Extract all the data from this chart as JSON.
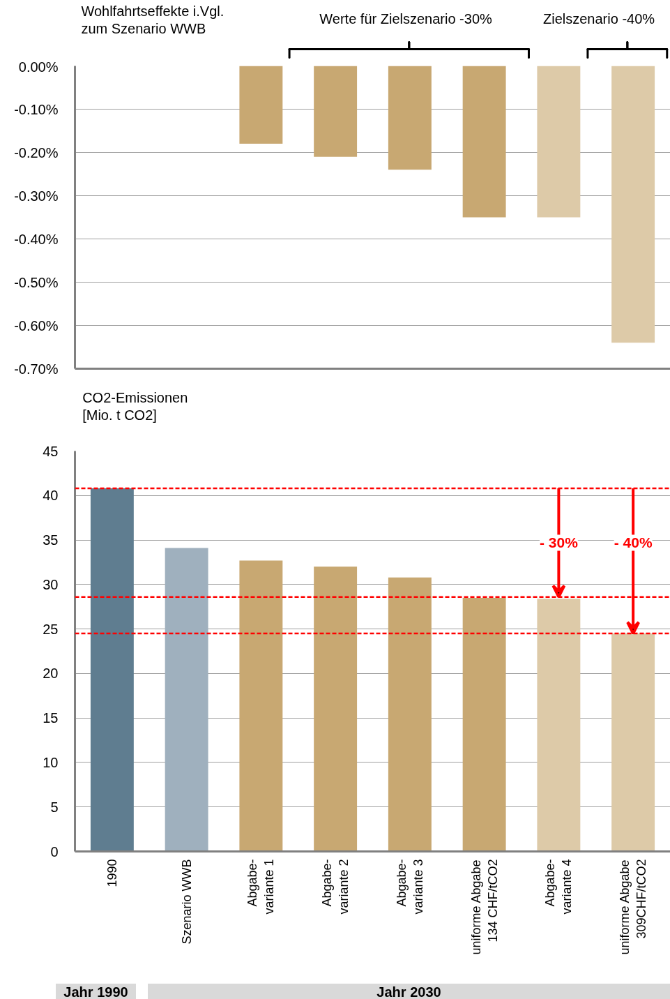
{
  "chart_data": [
    {
      "type": "bar",
      "ylabel": "Wohlfahrtseffekte i.Vgl.\nzum Szenario WWB",
      "categories": [
        null,
        null,
        null,
        null,
        null,
        null,
        null,
        null
      ],
      "values": [
        null,
        null,
        -0.18,
        -0.21,
        -0.24,
        -0.35,
        -0.35,
        -0.64
      ],
      "colors": [
        "#5f7d90",
        "#9fb0be",
        "#c8a872",
        "#c8a872",
        "#c8a872",
        "#c8a872",
        "#ddcaa8",
        "#ddcaa8"
      ],
      "ylim": [
        -0.7,
        0
      ],
      "yticks": [
        {
          "value": 0,
          "label": "0.00%"
        },
        {
          "value": -0.1,
          "label": "-0.10%"
        },
        {
          "value": -0.2,
          "label": "-0.20%"
        },
        {
          "value": -0.3,
          "label": "-0.30%"
        },
        {
          "value": -0.4,
          "label": "-0.40%"
        },
        {
          "value": -0.5,
          "label": "-0.50%"
        },
        {
          "value": -0.6,
          "label": "-0.60%"
        },
        {
          "value": -0.7,
          "label": "-0.70%"
        }
      ],
      "annotations": [
        "Werte für Zielszenario -30%",
        "Zielszenario -40%"
      ],
      "grid": "y"
    },
    {
      "type": "bar",
      "ylabel": "CO2-Emissionen\n[Mio. t CO2]",
      "categories": [
        "1990",
        "Szenario WWB",
        "Abgabe-\nvariante 1",
        "Abgabe-\nvariante 2",
        "Abgabe-\nvariante 3",
        "uniforme Abgabe\n134 CHF/tCO2",
        "Abgabe-\nvariante 4",
        "uniforme Abgabe\n309CHF/tCO2"
      ],
      "values": [
        40.8,
        34.1,
        32.7,
        32.0,
        30.8,
        28.5,
        28.4,
        24.5
      ],
      "colors": [
        "#5f7d90",
        "#9fb0be",
        "#c8a872",
        "#c8a872",
        "#c8a872",
        "#c8a872",
        "#ddcaa8",
        "#ddcaa8"
      ],
      "ylim": [
        0,
        45
      ],
      "yticks": [
        0,
        5,
        10,
        15,
        20,
        25,
        30,
        35,
        40,
        45
      ],
      "ref_lines": [
        {
          "axis": "y",
          "value": 40.8,
          "color": "#ff0000",
          "line_style": "dashed"
        },
        {
          "axis": "y",
          "value": 28.6,
          "color": "#ff0000",
          "line_style": "dashed"
        },
        {
          "axis": "y",
          "value": 24.5,
          "color": "#ff0000",
          "line_style": "dashed"
        }
      ],
      "annotations": [
        "- 30%",
        "- 40%",
        "Jahr 1990",
        "Jahr 2030"
      ],
      "grid": "y"
    }
  ]
}
